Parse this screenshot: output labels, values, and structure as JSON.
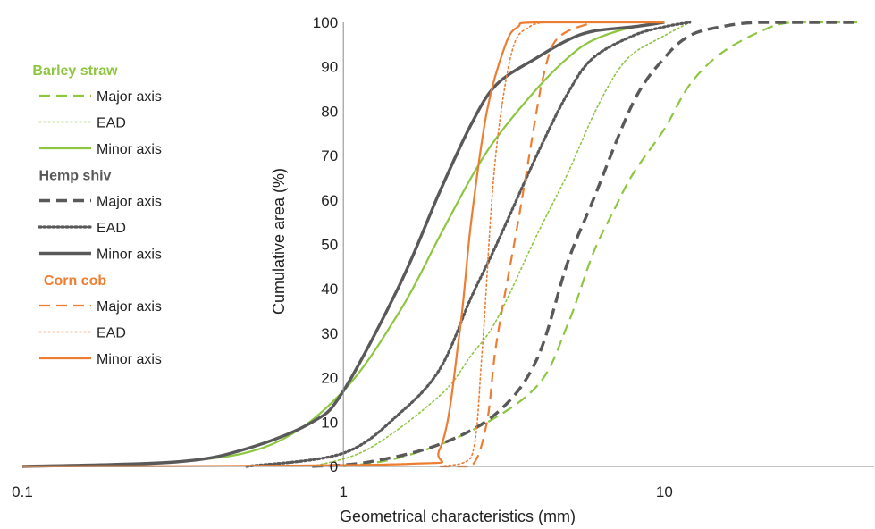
{
  "chart_data": {
    "type": "line",
    "title": "",
    "xlabel": "Geometrical characteristics (mm)",
    "ylabel": "Cumulative area (%)",
    "xscale": "log",
    "xlim": [
      0.1,
      45
    ],
    "ylim": [
      0,
      100
    ],
    "xticks": [
      0.1,
      1,
      10
    ],
    "xtick_labels": [
      "0.1",
      "1",
      "10"
    ],
    "yticks": [
      0,
      10,
      20,
      30,
      40,
      50,
      60,
      70,
      80,
      90,
      100
    ],
    "ytick_labels": [
      "0",
      "10",
      "20",
      "30",
      "40",
      "50",
      "60",
      "70",
      "80",
      "90",
      "100"
    ],
    "grid": false,
    "legend_position": "left",
    "colors": {
      "barley": "#8dc63f",
      "hemp": "#595959",
      "corn": "#ed7d31"
    },
    "groups": [
      {
        "title": "Barley straw",
        "color": "#8dc63f",
        "series": [
          {
            "name": "Major axis",
            "style": "dashed",
            "points": [
              [
                1,
                0
              ],
              [
                1.5,
                2
              ],
              [
                2.5,
                8
              ],
              [
                4,
                18
              ],
              [
                5,
                32
              ],
              [
                6,
                48
              ],
              [
                7,
                58
              ],
              [
                8,
                66
              ],
              [
                10,
                76
              ],
              [
                12,
                86
              ],
              [
                15,
                93
              ],
              [
                20,
                98
              ],
              [
                25,
                100
              ],
              [
                40,
                100
              ]
            ]
          },
          {
            "name": "EAD",
            "style": "dotted",
            "points": [
              [
                0.8,
                0
              ],
              [
                1.2,
                4
              ],
              [
                2,
                16
              ],
              [
                2.5,
                25
              ],
              [
                3,
                33
              ],
              [
                4,
                52
              ],
              [
                5,
                66
              ],
              [
                6,
                79
              ],
              [
                7,
                88
              ],
              [
                8,
                93
              ],
              [
                10,
                97
              ],
              [
                12,
                100
              ]
            ]
          },
          {
            "name": "Minor axis",
            "style": "solid",
            "points": [
              [
                0.1,
                0
              ],
              [
                0.3,
                1
              ],
              [
                0.6,
                5
              ],
              [
                1,
                17
              ],
              [
                1.5,
                35
              ],
              [
                2,
                52
              ],
              [
                2.5,
                65
              ],
              [
                3,
                74
              ],
              [
                4,
                85
              ],
              [
                5,
                92
              ],
              [
                6,
                96
              ],
              [
                8,
                99
              ],
              [
                10,
                100
              ]
            ]
          }
        ]
      },
      {
        "title": "Hemp shiv",
        "color": "#595959",
        "series": [
          {
            "name": "Major axis",
            "style": "dashed",
            "points": [
              [
                0.8,
                0
              ],
              [
                1.2,
                1
              ],
              [
                2,
                5
              ],
              [
                3,
                12
              ],
              [
                4,
                24
              ],
              [
                5,
                46
              ],
              [
                6,
                60
              ],
              [
                8,
                82
              ],
              [
                10,
                92
              ],
              [
                12,
                97
              ],
              [
                15,
                99
              ],
              [
                20,
                100
              ],
              [
                40,
                100
              ]
            ]
          },
          {
            "name": "EAD",
            "style": "dotted",
            "points": [
              [
                0.5,
                0
              ],
              [
                1,
                3
              ],
              [
                1.5,
                12
              ],
              [
                2,
                22
              ],
              [
                2.5,
                38
              ],
              [
                3,
                50
              ],
              [
                4,
                70
              ],
              [
                5,
                84
              ],
              [
                6,
                92
              ],
              [
                8,
                97
              ],
              [
                10,
                99
              ],
              [
                12,
                100
              ]
            ]
          },
          {
            "name": "Minor axis",
            "style": "solid",
            "points": [
              [
                0.1,
                0
              ],
              [
                0.3,
                1
              ],
              [
                0.5,
                4
              ],
              [
                0.8,
                10
              ],
              [
                1,
                17
              ],
              [
                1.5,
                41
              ],
              [
                2,
                62
              ],
              [
                2.5,
                77
              ],
              [
                3,
                86
              ],
              [
                4,
                92
              ],
              [
                5,
                96
              ],
              [
                6,
                98
              ],
              [
                8,
                99
              ],
              [
                10,
                100
              ]
            ]
          }
        ]
      },
      {
        "title": "Corn cob",
        "color": "#ed7d31",
        "series": [
          {
            "name": "Major axis",
            "style": "dashed",
            "points": [
              [
                2,
                0
              ],
              [
                2.5,
                0
              ],
              [
                2.8,
                10
              ],
              [
                3,
                28
              ],
              [
                3.5,
                55
              ],
              [
                4,
                80
              ],
              [
                4.2,
                88
              ],
              [
                4.5,
                95
              ],
              [
                5,
                98
              ],
              [
                6,
                100
              ]
            ]
          },
          {
            "name": "EAD",
            "style": "dotted",
            "points": [
              [
                2,
                0
              ],
              [
                2.5,
                2
              ],
              [
                2.7,
                25
              ],
              [
                2.9,
                60
              ],
              [
                3.1,
                80
              ],
              [
                3.4,
                95
              ],
              [
                3.8,
                99
              ],
              [
                4.2,
                100
              ]
            ]
          },
          {
            "name": "Minor axis",
            "style": "solid",
            "points": [
              [
                0.1,
                0
              ],
              [
                1.5,
                0.5
              ],
              [
                2,
                4
              ],
              [
                2.3,
                30
              ],
              [
                2.5,
                55
              ],
              [
                2.8,
                80
              ],
              [
                3.2,
                95
              ],
              [
                3.5,
                99
              ],
              [
                4,
                100
              ],
              [
                10,
                100
              ]
            ]
          }
        ]
      }
    ]
  }
}
